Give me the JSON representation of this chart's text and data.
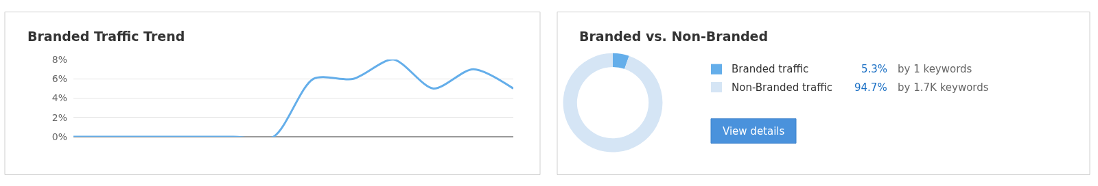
{
  "chart_data": [
    {
      "type": "line",
      "title": "Branded Traffic Trend",
      "categories": [
        null,
        null,
        null,
        null,
        null,
        null,
        null,
        null,
        null,
        null,
        null,
        null
      ],
      "series": [
        {
          "color": "#64aeea",
          "values": [
            0,
            0,
            0,
            0,
            0,
            0,
            6,
            6,
            8,
            5,
            7,
            5
          ]
        }
      ],
      "ylim": [
        0,
        8
      ],
      "yticks": [
        {
          "value": 0,
          "label": "0%"
        },
        {
          "value": 2,
          "label": "2%"
        },
        {
          "value": 4,
          "label": "4%"
        },
        {
          "value": 6,
          "label": "6%"
        },
        {
          "value": 8,
          "label": "8%"
        }
      ],
      "grid": "y",
      "marker": "none",
      "line_style": "solid",
      "legend": false
    },
    {
      "type": "donut",
      "title": "Branded vs. Non-Branded",
      "categories": [
        "Branded traffic",
        "Non-Branded traffic"
      ],
      "values": [
        5.3,
        94.7
      ],
      "colors": [
        "#64aeea",
        "#d5e5f5"
      ],
      "value_labels": [
        "5.3%",
        "94.7%"
      ],
      "annotations": [
        "by 1 keywords",
        "by 1.7K keywords",
        "View details"
      ],
      "legend": "right"
    }
  ]
}
